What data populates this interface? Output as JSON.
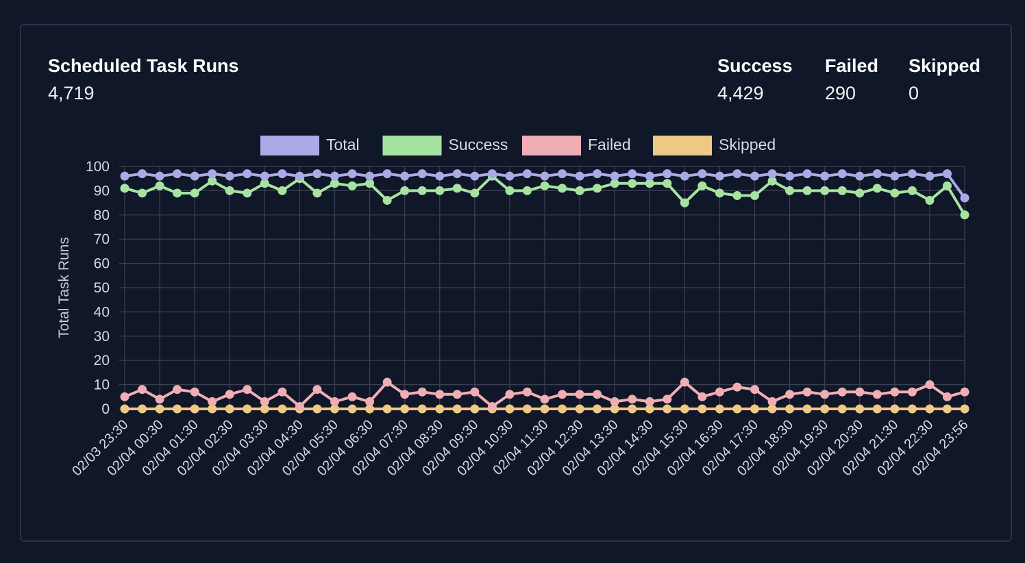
{
  "header": {
    "title": "Scheduled Task Runs",
    "total": "4,719",
    "stats": [
      {
        "label": "Success",
        "value": "4,429"
      },
      {
        "label": "Failed",
        "value": "290"
      },
      {
        "label": "Skipped",
        "value": "0"
      }
    ]
  },
  "chart_data": {
    "type": "line",
    "ylabel": "Total Task Runs",
    "xlabel": "",
    "ylim": [
      0,
      100
    ],
    "yticks": [
      0,
      10,
      20,
      30,
      40,
      50,
      60,
      70,
      80,
      90,
      100
    ],
    "grid": true,
    "legend_position": "top",
    "x_tick_labels": [
      "02/03 23:30",
      "02/04 00:30",
      "02/04 01:30",
      "02/04 02:30",
      "02/04 03:30",
      "02/04 04:30",
      "02/04 05:30",
      "02/04 06:30",
      "02/04 07:30",
      "02/04 08:30",
      "02/04 09:30",
      "02/04 10:30",
      "02/04 11:30",
      "02/04 12:30",
      "02/04 13:30",
      "02/04 14:30",
      "02/04 15:30",
      "02/04 16:30",
      "02/04 17:30",
      "02/04 18:30",
      "02/04 19:30",
      "02/04 20:30",
      "02/04 21:30",
      "02/04 22:30",
      "02/04 23:56"
    ],
    "series": [
      {
        "name": "Total",
        "color": "#a9aae6",
        "values": [
          96,
          97,
          96,
          97,
          96,
          97,
          96,
          97,
          96,
          97,
          96,
          97,
          96,
          97,
          96,
          97,
          96,
          97,
          96,
          97,
          96,
          97,
          96,
          97,
          96,
          97,
          96,
          97,
          96,
          97,
          96,
          97,
          96,
          97,
          96,
          97,
          96,
          97,
          96,
          97,
          96,
          97,
          96,
          97,
          96,
          97,
          96,
          97,
          87
        ]
      },
      {
        "name": "Success",
        "color": "#a6e3a1",
        "values": [
          91,
          89,
          92,
          89,
          89,
          94,
          90,
          89,
          93,
          90,
          95,
          89,
          93,
          92,
          93,
          86,
          90,
          90,
          90,
          91,
          89,
          96,
          90,
          90,
          92,
          91,
          90,
          91,
          93,
          93,
          93,
          93,
          85,
          92,
          89,
          88,
          88,
          94,
          90,
          90,
          90,
          90,
          89,
          91,
          89,
          90,
          86,
          92,
          80
        ]
      },
      {
        "name": "Failed",
        "color": "#f0aeb4",
        "values": [
          5,
          8,
          4,
          8,
          7,
          3,
          6,
          8,
          3,
          7,
          1,
          8,
          3,
          5,
          3,
          11,
          6,
          7,
          6,
          6,
          7,
          1,
          6,
          7,
          4,
          6,
          6,
          6,
          3,
          4,
          3,
          4,
          11,
          5,
          7,
          9,
          8,
          3,
          6,
          7,
          6,
          7,
          7,
          6,
          7,
          7,
          10,
          5,
          7
        ]
      },
      {
        "name": "Skipped",
        "color": "#eec985",
        "values": [
          0,
          0,
          0,
          0,
          0,
          0,
          0,
          0,
          0,
          0,
          0,
          0,
          0,
          0,
          0,
          0,
          0,
          0,
          0,
          0,
          0,
          0,
          0,
          0,
          0,
          0,
          0,
          0,
          0,
          0,
          0,
          0,
          0,
          0,
          0,
          0,
          0,
          0,
          0,
          0,
          0,
          0,
          0,
          0,
          0,
          0,
          0,
          0,
          0
        ]
      }
    ]
  }
}
